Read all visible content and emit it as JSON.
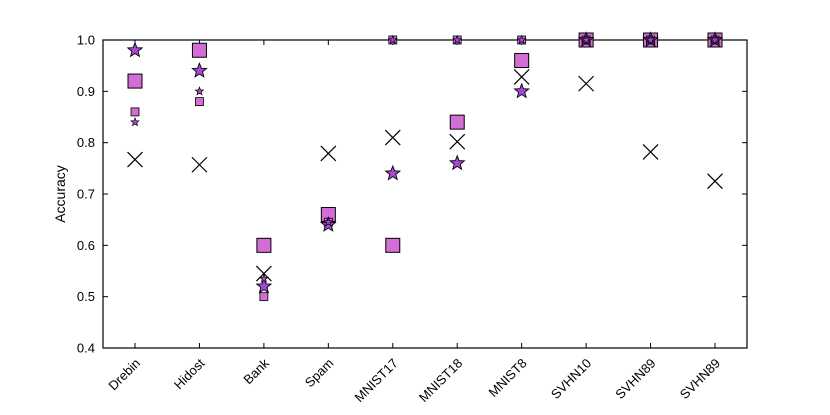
{
  "chart_data": {
    "type": "scatter",
    "title": "",
    "xlabel": "",
    "ylabel": "Accuracy",
    "ylim": [
      0.4,
      1.0
    ],
    "yticks": [
      "0.4",
      "0.5",
      "0.6",
      "0.7",
      "0.8",
      "0.9",
      "1.0"
    ],
    "grid": false,
    "categories": [
      "Drebin",
      "Hidost",
      "Bank",
      "Spam",
      "MNIST17",
      "MNIST18",
      "MNIST8",
      "SVHN10",
      "SVHN89",
      "SVHN89"
    ],
    "series": [
      {
        "marker": "cross",
        "color": "#000000",
        "values": [
          0.767,
          0.757,
          0.545,
          0.779,
          0.81,
          0.802,
          0.928,
          0.915,
          0.782,
          0.725
        ]
      },
      {
        "marker": "square-large",
        "color": "#d26ed6",
        "values": [
          0.92,
          0.98,
          0.6,
          0.66,
          0.6,
          0.84,
          0.96,
          1.0,
          1.0,
          1.0
        ]
      },
      {
        "marker": "square-small",
        "color": "#d26ed6",
        "values": [
          0.86,
          0.88,
          0.5,
          0.645,
          1.0,
          1.0,
          1.0,
          1.0,
          1.0,
          1.0
        ]
      },
      {
        "marker": "star-large",
        "color": "#a64ad6",
        "values": [
          0.98,
          0.94,
          0.52,
          0.64,
          0.74,
          0.76,
          0.9,
          1.0,
          1.0,
          1.0
        ]
      },
      {
        "marker": "star-small",
        "color": "#a64ad6",
        "values": [
          0.84,
          0.9,
          0.535,
          0.645,
          1.0,
          1.0,
          1.0,
          1.0,
          1.0,
          1.0
        ]
      }
    ]
  }
}
